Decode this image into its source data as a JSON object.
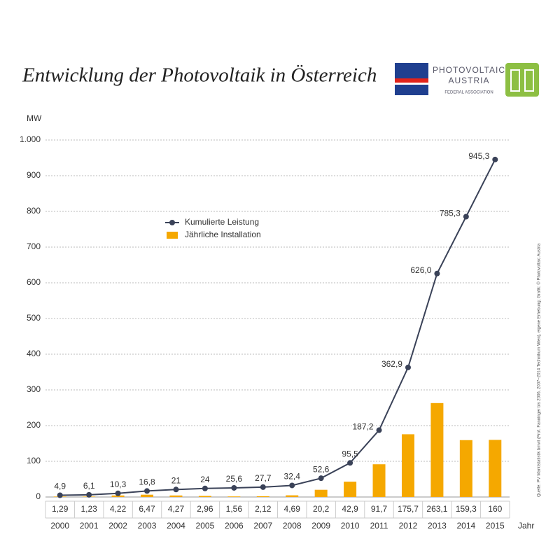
{
  "chart_data": {
    "type": "bar_line",
    "title": "Entwicklung der Photovoltaik in Österreich",
    "y_axis_label": "MW",
    "x_axis_label": "Jahr",
    "logo": {
      "line1": "PHOTOVOLTAIC",
      "line2": "AUSTRIA",
      "line3": "FEDERAL ASSOCIATION"
    },
    "source": "Quelle: PV Marktstatistik bmvit (Prof. Fanninger bis 2006, 2007–2014 Technikum Wien), eigene Erhebung; Grafik: © Photovoltaic Austria",
    "categories": [
      "2000",
      "2001",
      "2002",
      "2003",
      "2004",
      "2005",
      "2006",
      "2007",
      "2008",
      "2009",
      "2010",
      "2011",
      "2012",
      "2013",
      "2014",
      "2015"
    ],
    "series": [
      {
        "name": "Kumulierte Leistung",
        "type": "line",
        "color": "#3a4258",
        "values": [
          4.9,
          6.1,
          10.3,
          16.8,
          21,
          24,
          25.6,
          27.7,
          32.4,
          52.6,
          95.5,
          187.2,
          362.9,
          626.0,
          785.3,
          945.3
        ],
        "value_labels": [
          "4,9",
          "6,1",
          "10,3",
          "16,8",
          "21",
          "24",
          "25,6",
          "27,7",
          "32,4",
          "52,6",
          "95,5",
          "187,2",
          "362,9",
          "626,0",
          "785,3",
          "945,3"
        ]
      },
      {
        "name": "Jährliche Installation",
        "type": "bar",
        "color": "#f5a800",
        "values": [
          1.29,
          1.23,
          4.22,
          6.47,
          4.27,
          2.96,
          1.56,
          2.12,
          4.69,
          20.2,
          42.9,
          91.7,
          175.7,
          263.1,
          159.3,
          160
        ],
        "value_labels": [
          "1,29",
          "1,23",
          "4,22",
          "6,47",
          "4,27",
          "2,96",
          "1,56",
          "2,12",
          "4,69",
          "20,2",
          "42,9",
          "91,7",
          "175,7",
          "263,1",
          "159,3",
          "160"
        ]
      }
    ],
    "ylim": [
      0,
      1000
    ],
    "yticks": [
      0,
      100,
      200,
      300,
      400,
      500,
      600,
      700,
      800,
      900,
      {
        "value": 1000,
        "label": "1.000"
      }
    ],
    "grid": true
  }
}
